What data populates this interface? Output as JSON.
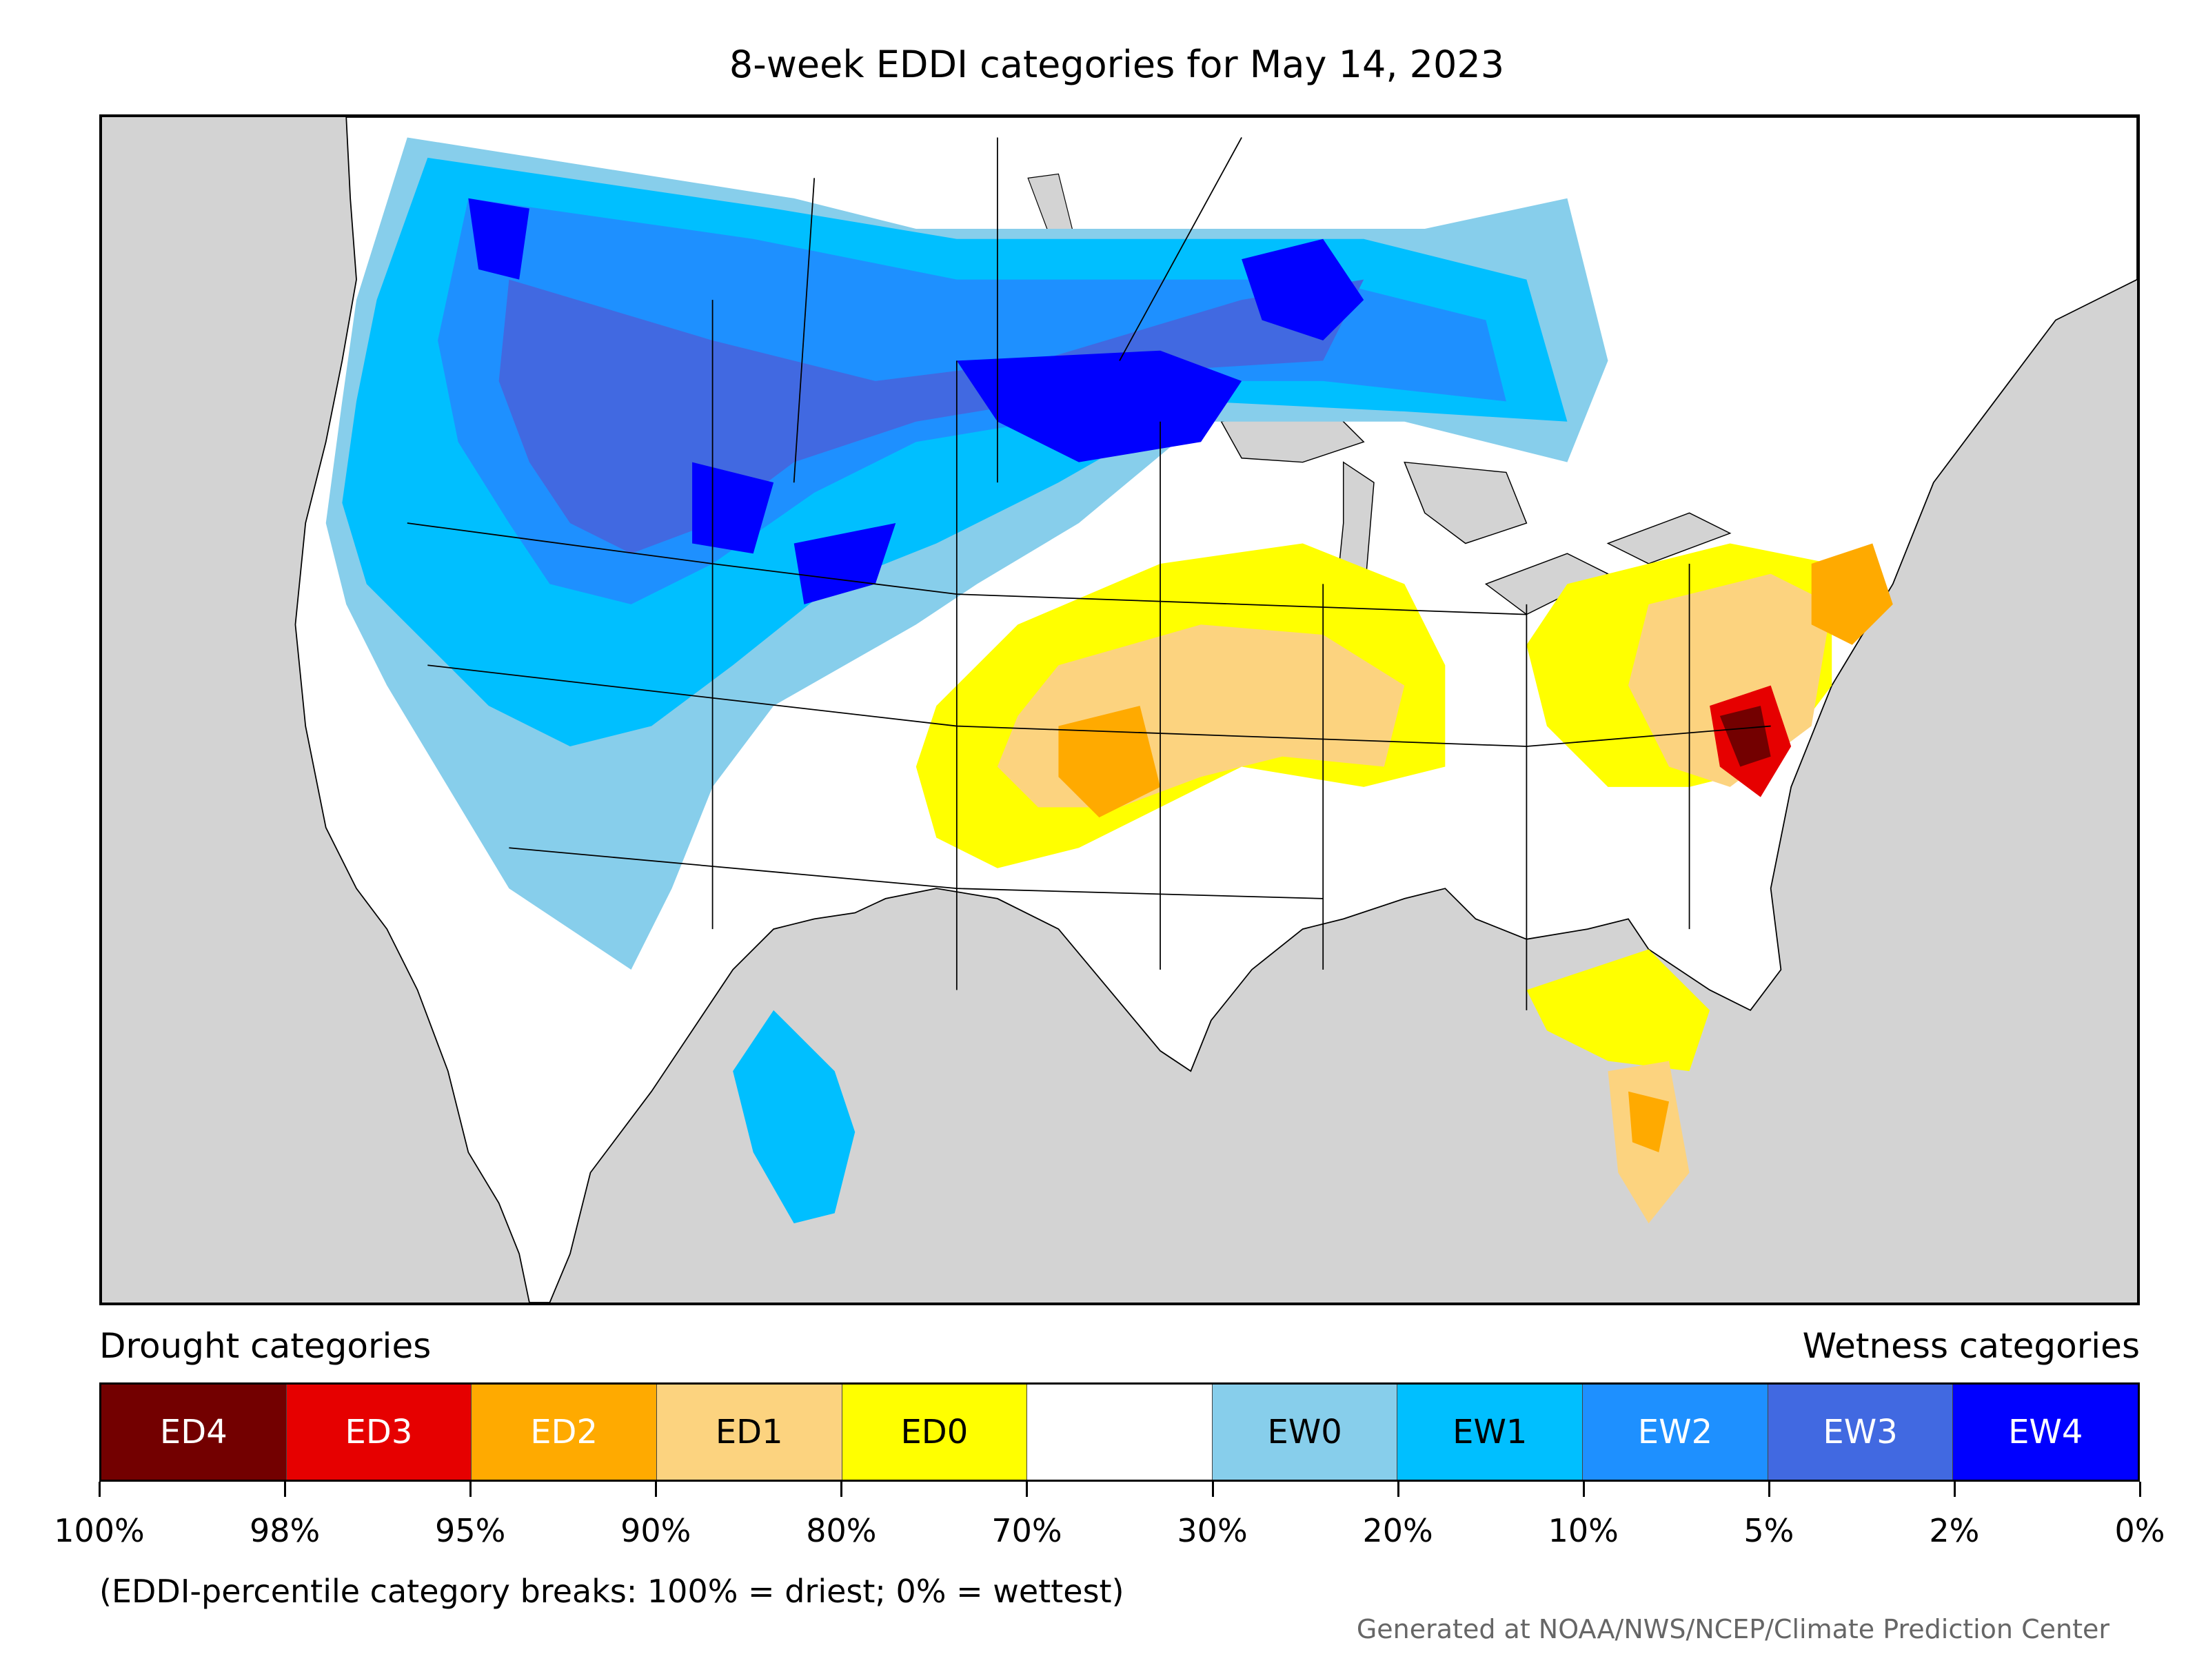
{
  "title": "8-week EDDI categories for May 14, 2023",
  "legend": {
    "left_heading": "Drought categories",
    "right_heading": "Wetness categories",
    "categories": [
      {
        "label": "ED4",
        "color": "#730000",
        "text_color": "#ffffff"
      },
      {
        "label": "ED3",
        "color": "#e60000",
        "text_color": "#ffffff"
      },
      {
        "label": "ED2",
        "color": "#ffaa00",
        "text_color": "#ffffff"
      },
      {
        "label": "ED1",
        "color": "#fcd37f",
        "text_color": "#000000"
      },
      {
        "label": "ED0",
        "color": "#ffff00",
        "text_color": "#000000"
      },
      {
        "label": "",
        "color": "#ffffff",
        "text_color": "#000000"
      },
      {
        "label": "EW0",
        "color": "#87ceeb",
        "text_color": "#000000"
      },
      {
        "label": "EW1",
        "color": "#00bfff",
        "text_color": "#000000"
      },
      {
        "label": "EW2",
        "color": "#1e90ff",
        "text_color": "#ffffff"
      },
      {
        "label": "EW3",
        "color": "#4169e1",
        "text_color": "#ffffff"
      },
      {
        "label": "EW4",
        "color": "#0000ff",
        "text_color": "#ffffff"
      }
    ],
    "ticks": [
      "100%",
      "98%",
      "95%",
      "90%",
      "80%",
      "70%",
      "30%",
      "20%",
      "10%",
      "5%",
      "2%",
      "0%"
    ]
  },
  "note": "(EDDI-percentile category breaks: 100% = driest; 0% = wettest)",
  "credit": "Generated at NOAA/NWS/NCEP/Climate Prediction Center",
  "map": {
    "ocean_color": "#d3d3d3",
    "land_color": "#ffffff",
    "border_color": "#000000"
  }
}
